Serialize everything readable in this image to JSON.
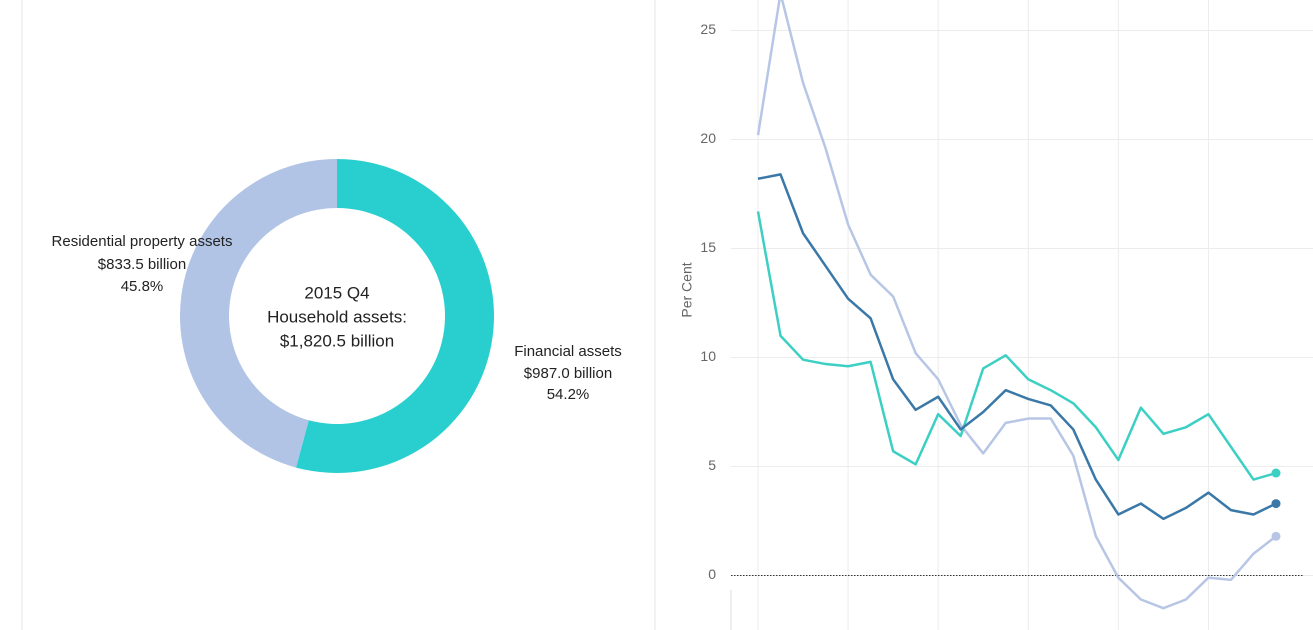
{
  "chart_data": [
    {
      "type": "donut",
      "center_label": [
        "2015 Q4",
        "Household assets:",
        "$1,820.5 billion"
      ],
      "categories": [
        "Financial assets",
        "Residential property assets"
      ],
      "values": [
        54.2,
        45.8
      ],
      "value_labels": [
        "54.2%",
        "45.8%"
      ],
      "amount_labels": [
        "$987.0 billion",
        "$833.5 billion"
      ],
      "colors": [
        "#29cfcf",
        "#b1c4e6"
      ]
    },
    {
      "type": "line",
      "ylabel": "Per Cent",
      "categories": [
        null,
        null,
        null,
        null,
        null,
        null,
        null,
        null,
        null,
        null,
        null,
        null,
        null,
        null,
        null,
        null,
        null,
        null,
        null,
        null,
        null,
        null,
        null,
        null
      ],
      "ylim": [
        -2.5,
        26.4
      ],
      "yticks": [
        0,
        5,
        10,
        15,
        20,
        25
      ],
      "grid": true,
      "zero_line": true,
      "end_markers": true,
      "series": [
        {
          "color": "#b8c6e6",
          "values": [
            20.2,
            26.7,
            22.6,
            19.6,
            16.1,
            13.8,
            12.8,
            10.2,
            9.0,
            6.9,
            5.6,
            7.0,
            7.2,
            7.2,
            5.5,
            1.8,
            -0.1,
            -1.1,
            -1.5,
            -1.1,
            -0.1,
            -0.2,
            1.0,
            1.8
          ]
        },
        {
          "color": "#3ccfc4",
          "values": [
            16.7,
            11.0,
            9.9,
            9.7,
            9.6,
            9.8,
            5.7,
            5.1,
            7.4,
            6.4,
            9.5,
            10.1,
            9.0,
            8.5,
            7.9,
            6.8,
            5.3,
            7.7,
            6.5,
            6.8,
            7.4,
            5.9,
            4.4,
            4.7
          ]
        },
        {
          "color": "#3a78a8",
          "values": [
            18.2,
            18.4,
            15.7,
            14.2,
            12.7,
            11.8,
            9.0,
            7.6,
            8.2,
            6.7,
            7.5,
            8.5,
            8.1,
            7.8,
            6.7,
            4.4,
            2.8,
            3.3,
            2.6,
            3.1,
            3.8,
            3.0,
            2.8,
            3.3
          ]
        }
      ]
    }
  ]
}
